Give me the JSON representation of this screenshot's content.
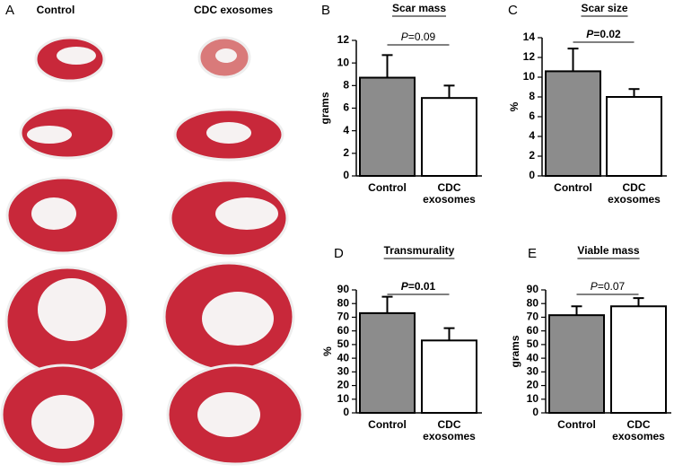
{
  "photo_panel": {
    "label": "A",
    "columns": [
      "Control",
      "CDC exosomes"
    ]
  },
  "chart_data": [
    {
      "type": "bar",
      "panel": "B",
      "title": "Scar mass",
      "y_label": "grams",
      "categories": [
        "Control",
        "CDC exosomes"
      ],
      "values": [
        8.7,
        6.9
      ],
      "errors": [
        2.0,
        1.1
      ],
      "colors": [
        "#8c8c8c",
        "#ffffff"
      ],
      "ylim": [
        0,
        12
      ],
      "yticks": [
        0,
        2,
        4,
        6,
        8,
        10,
        12
      ],
      "annotation": "P=0.09",
      "annotation_bold": false
    },
    {
      "type": "bar",
      "panel": "C",
      "title": "Scar size",
      "y_label": "%",
      "categories": [
        "Control",
        "CDC exosomes"
      ],
      "values": [
        10.6,
        8.0
      ],
      "errors": [
        2.3,
        0.8
      ],
      "colors": [
        "#8c8c8c",
        "#ffffff"
      ],
      "ylim": [
        0,
        14
      ],
      "yticks": [
        0,
        2,
        4,
        6,
        8,
        10,
        12,
        14
      ],
      "annotation": "P=0.02",
      "annotation_bold": true
    },
    {
      "type": "bar",
      "panel": "D",
      "title": "Transmurality",
      "y_label": "%",
      "categories": [
        "Control",
        "CDC exosomes"
      ],
      "values": [
        73,
        53
      ],
      "errors": [
        12,
        9
      ],
      "colors": [
        "#8c8c8c",
        "#ffffff"
      ],
      "ylim": [
        0,
        90
      ],
      "yticks": [
        0,
        10,
        20,
        30,
        40,
        50,
        60,
        70,
        80,
        90
      ],
      "annotation": "P=0.01",
      "annotation_bold": true
    },
    {
      "type": "bar",
      "panel": "E",
      "title": "Viable mass",
      "y_label": "grams",
      "categories": [
        "Control",
        "CDC exosomes"
      ],
      "values": [
        71.5,
        78
      ],
      "errors": [
        6.5,
        6
      ],
      "colors": [
        "#8c8c8c",
        "#ffffff"
      ],
      "ylim": [
        0,
        90
      ],
      "yticks": [
        0,
        10,
        20,
        30,
        40,
        50,
        60,
        70,
        80,
        90
      ],
      "annotation": "P=0.07",
      "annotation_bold": false
    }
  ]
}
